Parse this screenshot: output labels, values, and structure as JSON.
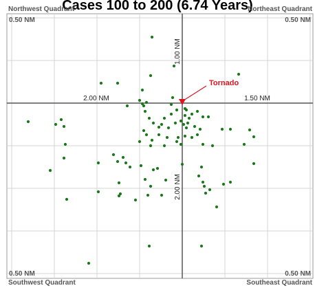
{
  "chart_data": {
    "type": "scatter",
    "title": "Cases 100 to 200 (6.74 Years)",
    "xlim": [
      -255,
      190
    ],
    "ylim": [
      -255,
      130
    ],
    "xticks": [
      -248,
      -186,
      -124,
      -62,
      0,
      62,
      124,
      186
    ],
    "yticks": [
      -248,
      -186,
      -124,
      -62,
      0,
      62,
      124
    ],
    "grid": true,
    "axis_labels": [
      "2.00 NM",
      "1.50 NM",
      "1.00 NM",
      "2.00 NM"
    ],
    "quadrants": [
      {
        "name": "Northwest Quadrant",
        "range": "0.50 NM"
      },
      {
        "name": "Northeast Quadrant",
        "range": "0.50 NM"
      },
      {
        "name": "Southwest Quadrant",
        "range": "0.50 NM"
      },
      {
        "name": "Southeast Quadrant",
        "range": "0.50 NM"
      }
    ],
    "marker": {
      "label": "Tornado",
      "x": 0,
      "y": 0,
      "color": "#e0141e"
    },
    "series": [
      {
        "color": "#1a7a1a",
        "x": [
          -44,
          -12,
          82,
          -46,
          -118,
          -94,
          -58,
          -14,
          -62,
          -52,
          -80,
          -58,
          -56,
          -224,
          -176,
          -184,
          -172,
          -16,
          -8,
          6,
          22,
          30,
          38,
          14,
          4,
          10,
          -16,
          -26,
          -30,
          -34,
          -20,
          -10,
          -2,
          2,
          8,
          6,
          18,
          26,
          22,
          4,
          -6,
          -8,
          -2,
          14,
          30,
          44,
          58,
          70,
          98,
          104,
          90,
          -54,
          -48,
          -42,
          -56,
          -52,
          -44,
          -46,
          -34,
          -26,
          -22,
          -62,
          -170,
          -172,
          -100,
          -86,
          -94,
          -82,
          -76,
          -122,
          -192,
          -60,
          -42,
          -36,
          -54,
          -46,
          -24,
          -30,
          0,
          28,
          24,
          30,
          32,
          40,
          60,
          70,
          104,
          -92,
          -90,
          -92,
          -122,
          -68,
          -50,
          34,
          50,
          -168,
          -48,
          28,
          -136,
          4
        ],
        "values": [
          96,
          54,
          42,
          40,
          29,
          29,
          19,
          8,
          4,
          1,
          -4,
          -1,
          -4,
          -27,
          -24,
          -31,
          -34,
          -2,
          -10,
          -10,
          -12,
          -20,
          -20,
          -16,
          -18,
          -22,
          -16,
          -22,
          -31,
          -35,
          -36,
          -29,
          -26,
          -31,
          -29,
          -36,
          -34,
          -38,
          -46,
          -48,
          -50,
          -56,
          -60,
          -50,
          -60,
          -62,
          -38,
          -38,
          -39,
          -49,
          -60,
          -12,
          -22,
          -29,
          -40,
          -46,
          -54,
          -62,
          -46,
          -62,
          -50,
          -56,
          -60,
          -80,
          -75,
          -79,
          -85,
          -87,
          -93,
          -87,
          -98,
          -91,
          -97,
          -95,
          -111,
          -121,
          -112,
          -134,
          -89,
          -93,
          -106,
          -115,
          -121,
          -126,
          -118,
          -115,
          -88,
          -116,
          -132,
          -135,
          -129,
          -141,
          -134,
          -131,
          -151,
          -140,
          -208,
          -208,
          -233,
          -8
        ]
      }
    ]
  }
}
